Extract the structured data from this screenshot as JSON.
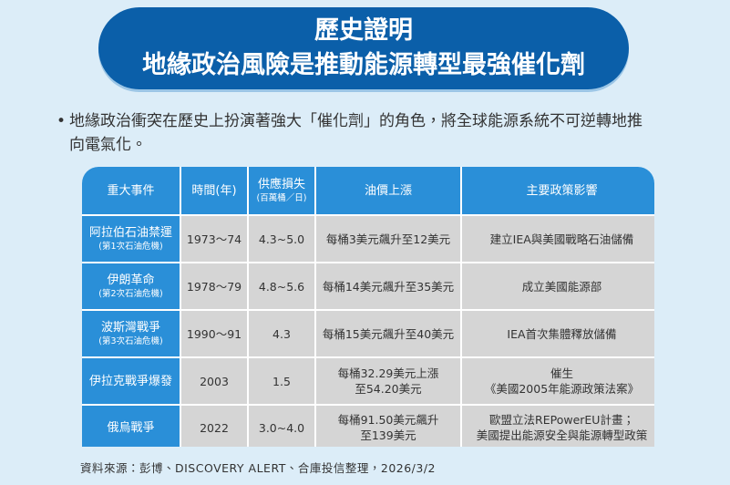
{
  "header": {
    "title_lines": [
      "歷史證明",
      "地緣政治風險是推動能源轉型最強催化劑"
    ]
  },
  "bullet": {
    "lines": [
      "地緣政治衝突在歷史上扮演著強大「催化劑」的角色，將全球能源系統不可逆轉地推",
      "向電氣化。"
    ]
  },
  "table": {
    "headers": [
      [
        "重大事件"
      ],
      [
        "時間(年)"
      ],
      [
        "供應損失",
        "(百萬桶／日)"
      ],
      [
        "油價上漲"
      ],
      [
        "主要政策影響"
      ]
    ],
    "rows": [
      [
        [
          "阿拉伯石油禁運",
          "(第1次石油危機)"
        ],
        [
          "1973～74"
        ],
        [
          "4.3~5.0"
        ],
        [
          "每桶3美元飆升至12美元"
        ],
        [
          "建立IEA與美國戰略石油儲備"
        ]
      ],
      [
        [
          "伊朗革命",
          "(第2次石油危機)"
        ],
        [
          "1978～79"
        ],
        [
          "4.8~5.6"
        ],
        [
          "每桶14美元飆升至35美元"
        ],
        [
          "成立美國能源部"
        ]
      ],
      [
        [
          "波斯灣戰爭",
          "(第3次石油危機)"
        ],
        [
          "1990～91"
        ],
        [
          "4.3"
        ],
        [
          "每桶15美元飆升至40美元"
        ],
        [
          "IEA首次集體釋放儲備"
        ]
      ],
      [
        [
          "伊拉克戰爭爆發"
        ],
        [
          "2003"
        ],
        [
          "1.5"
        ],
        [
          "每桶32.29美元上漲",
          "至54.20美元"
        ],
        [
          "催生",
          "《美國2005年能源政策法案》"
        ]
      ],
      [
        [
          "俄烏戰爭"
        ],
        [
          "2022"
        ],
        [
          "3.0~4.0"
        ],
        [
          "每桶91.50美元飆升",
          "至139美元"
        ],
        [
          "歐盟立法REPowerEU計畫；",
          "美國提出能源安全與能源轉型政策"
        ]
      ]
    ]
  },
  "footer": {
    "source": "資料來源：彭博、DISCOVERY ALERT、合庫投信整理，2026/3/2"
  }
}
